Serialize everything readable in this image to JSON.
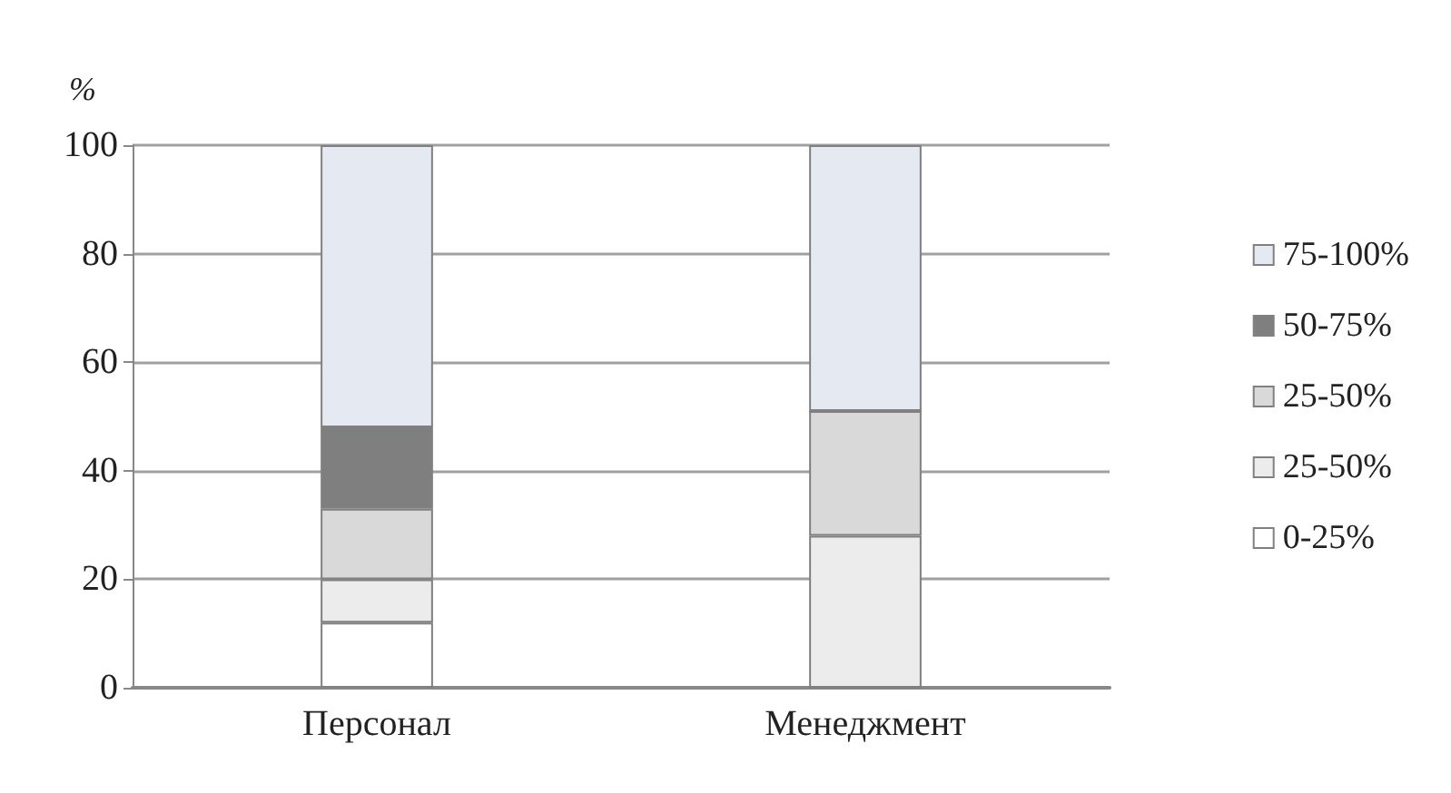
{
  "chart_data": {
    "type": "bar",
    "stacked": true,
    "ylabel": "%",
    "categories": [
      "Персонал",
      "Менеджмент"
    ],
    "series": [
      {
        "name": "0-25%",
        "color": "#ffffff",
        "values": [
          12,
          0
        ]
      },
      {
        "name": "25-50%",
        "color": "#ececec",
        "values": [
          8,
          28
        ]
      },
      {
        "name": "25-50%",
        "color": "#d9d9d9",
        "values": [
          13,
          23
        ]
      },
      {
        "name": "50-75%",
        "color": "#7f7f7f",
        "values": [
          15,
          0
        ]
      },
      {
        "name": "75-100%",
        "color": "#e4e9f2",
        "values": [
          52,
          49
        ]
      }
    ],
    "ylim": [
      0,
      100
    ],
    "yticks": [
      0,
      20,
      40,
      60,
      80,
      100
    ],
    "grid": "y",
    "legend": "right"
  }
}
